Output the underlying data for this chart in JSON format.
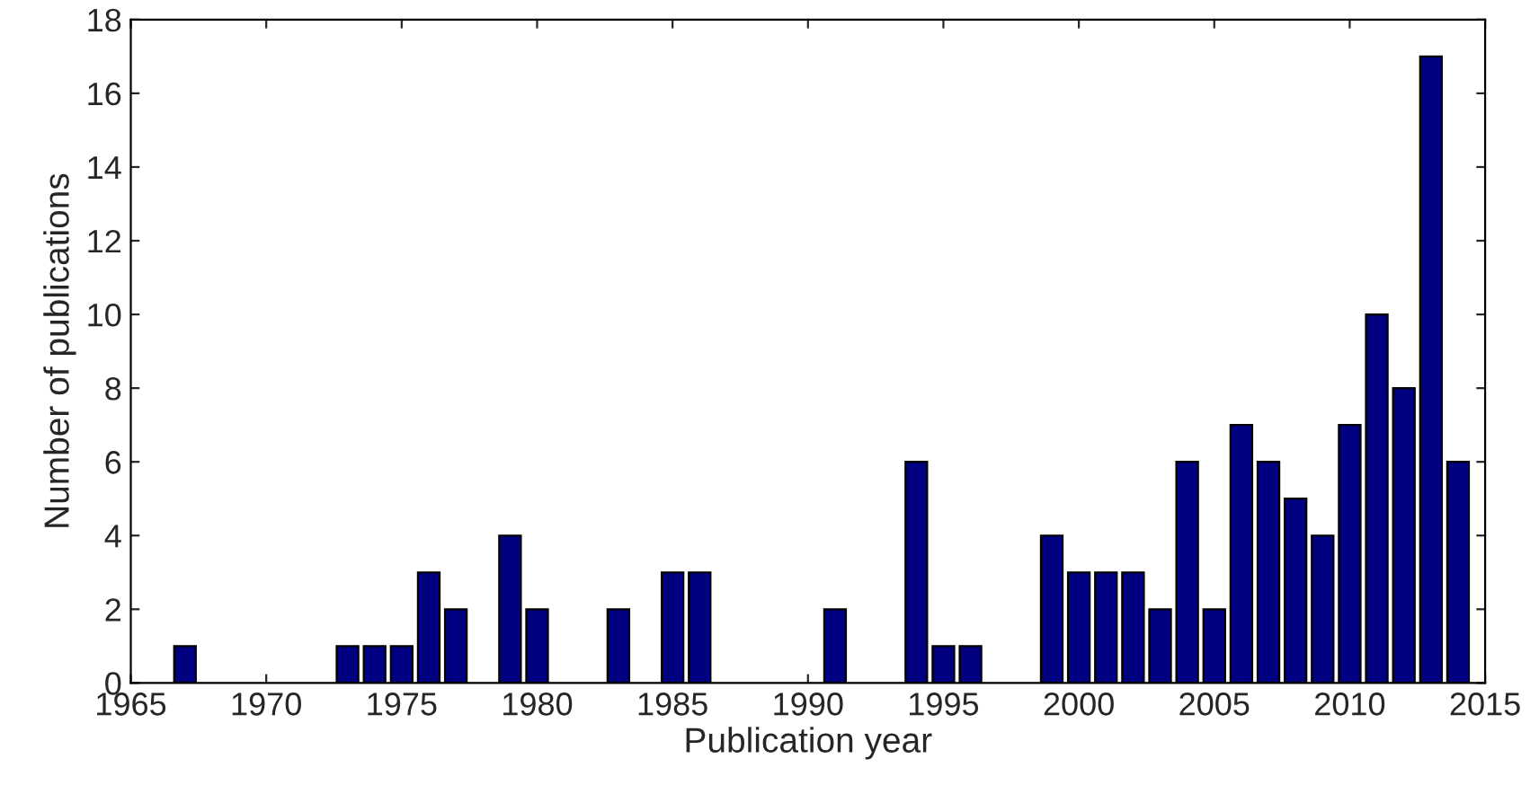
{
  "chart_data": {
    "type": "bar",
    "xlabel": "Publication year",
    "ylabel": "Number of publications",
    "x": [
      1967,
      1973,
      1974,
      1975,
      1976,
      1977,
      1979,
      1980,
      1983,
      1985,
      1986,
      1991,
      1994,
      1995,
      1996,
      1999,
      2000,
      2001,
      2002,
      2003,
      2004,
      2005,
      2006,
      2007,
      2008,
      2009,
      2010,
      2011,
      2012,
      2013,
      2014
    ],
    "values": [
      1,
      1,
      1,
      1,
      3,
      2,
      4,
      2,
      2,
      3,
      3,
      2,
      6,
      1,
      1,
      4,
      3,
      3,
      3,
      2,
      6,
      2,
      7,
      6,
      5,
      4,
      7,
      10,
      8,
      17,
      6
    ],
    "color": "#000080",
    "xlim": [
      1965,
      2015
    ],
    "xticks": [
      1965,
      1970,
      1975,
      1980,
      1985,
      1990,
      1995,
      2000,
      2005,
      2010,
      2015
    ],
    "ylim": [
      0,
      18
    ],
    "yticks": [
      0,
      2,
      4,
      6,
      8,
      10,
      12,
      14,
      16,
      18
    ],
    "grid": false,
    "legend": false
  }
}
